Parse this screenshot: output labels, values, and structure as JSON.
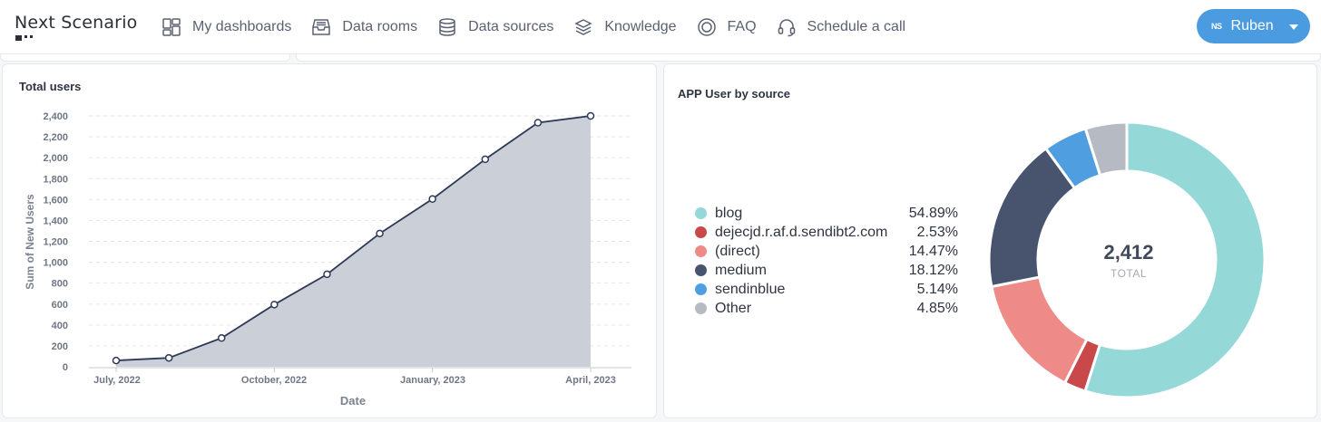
{
  "header": {
    "logo_text": "Next Scenario",
    "nav": [
      {
        "label": "My dashboards",
        "icon": "dashboard-icon"
      },
      {
        "label": "Data rooms",
        "icon": "inbox-icon"
      },
      {
        "label": "Data sources",
        "icon": "database-icon"
      },
      {
        "label": "Knowledge",
        "icon": "layers-icon"
      },
      {
        "label": "FAQ",
        "icon": "lifebuoy-icon"
      },
      {
        "label": "Schedule a call",
        "icon": "headset-icon"
      }
    ],
    "user": {
      "initials": "NS",
      "name": "Ruben"
    }
  },
  "total_users_card": {
    "title": "Total users"
  },
  "source_card": {
    "title": "APP User by source",
    "total_value": "2,412",
    "total_label": "TOTAL"
  },
  "colors": {
    "accent": "#4b9be0",
    "line": "#2f3a57",
    "area": "#c8ccd6"
  },
  "chart_data": [
    {
      "type": "area",
      "title": "Total users",
      "xlabel": "Date",
      "ylabel": "Sum of New Users",
      "ylim": [
        0,
        2400
      ],
      "y_ticks": [
        "0",
        "200",
        "400",
        "600",
        "800",
        "1,000",
        "1,200",
        "1,400",
        "1,600",
        "1,800",
        "2,000",
        "2,200",
        "2,400"
      ],
      "x_tick_labels": [
        "July, 2022",
        "October, 2022",
        "January, 2023",
        "April, 2023"
      ],
      "x": [
        "2022-07",
        "2022-08",
        "2022-09",
        "2022-10",
        "2022-11",
        "2022-12",
        "2023-01",
        "2023-02",
        "2023-03",
        "2023-04"
      ],
      "values": [
        60,
        85,
        275,
        595,
        885,
        1275,
        1605,
        1985,
        2335,
        2400
      ],
      "grid": true
    },
    {
      "type": "pie",
      "title": "APP User by source",
      "legend_position": "left",
      "slices": [
        {
          "label": "blog",
          "percent": 54.89,
          "display": "54.89%",
          "color": "#94d9d8"
        },
        {
          "label": "dejecjd.r.af.d.sendibt2.com",
          "percent": 2.53,
          "display": "2.53%",
          "color": "#c9484a"
        },
        {
          "label": "(direct)",
          "percent": 14.47,
          "display": "14.47%",
          "color": "#ee8a88"
        },
        {
          "label": "medium",
          "percent": 18.12,
          "display": "18.12%",
          "color": "#48536e"
        },
        {
          "label": "sendinblue",
          "percent": 5.14,
          "display": "5.14%",
          "color": "#4f9fe0"
        },
        {
          "label": "Other",
          "percent": 4.85,
          "display": "4.85%",
          "color": "#b6bac2"
        }
      ]
    }
  ]
}
